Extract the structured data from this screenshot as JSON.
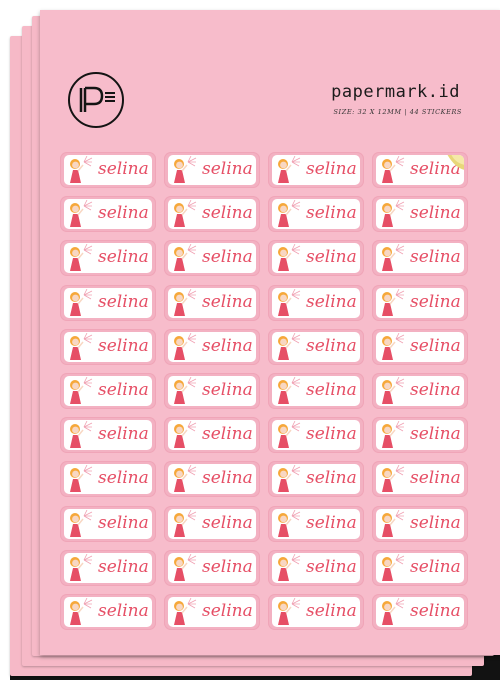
{
  "brand": {
    "name": "papermark.id",
    "subtitle": "SIZE: 32 X 12MM | 44 STICKERS",
    "accent": "#f7bccb",
    "name_color": "#e64f66"
  },
  "sheet": {
    "sheet_count_visible": 4,
    "columns": 4,
    "rows": 11,
    "sticker_label": "selina",
    "peeled_sticker_index": 3
  }
}
